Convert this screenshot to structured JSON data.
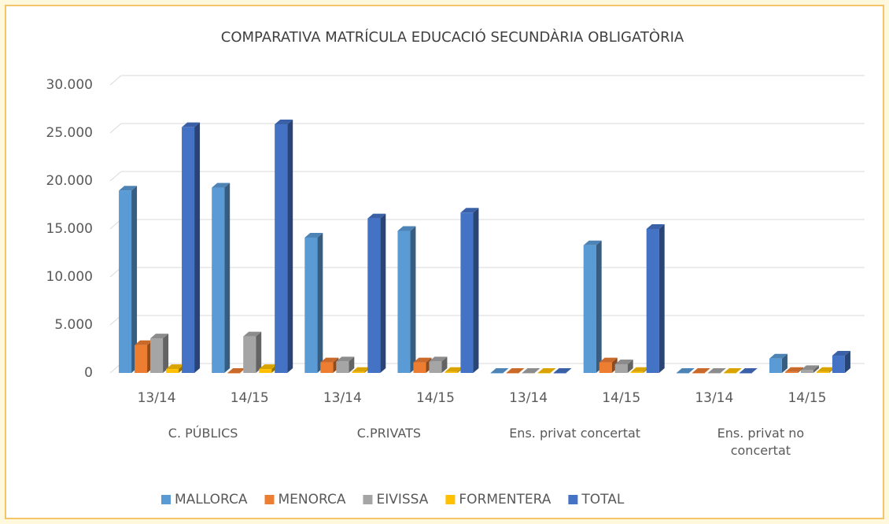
{
  "chart_data": {
    "type": "bar3d",
    "title": "COMPARATIVA MATRÍCULA EDUCACIÓ SECUNDÀRIA OBLIGATÒRIA",
    "categories": [
      "13/14",
      "14/15",
      "13/14",
      "14/15",
      "13/14",
      "14/15",
      "13/14",
      "14/15"
    ],
    "groups": [
      "C. PÚBLICS",
      "C.PRIVATS",
      "Ens. privat concertat",
      "Ens. privat no concertat"
    ],
    "series": [
      {
        "name": "MALLORCA",
        "color": "#5b9bd5",
        "values": [
          19000,
          19300,
          14100,
          14800,
          0,
          13300,
          0,
          1500
        ]
      },
      {
        "name": "MENORCA",
        "color": "#ed7d31",
        "values": [
          2900,
          0,
          1100,
          1100,
          0,
          1100,
          0,
          100
        ]
      },
      {
        "name": "EIVISSA",
        "color": "#a5a5a5",
        "values": [
          3600,
          3800,
          1200,
          1200,
          0,
          900,
          0,
          300
        ]
      },
      {
        "name": "FORMENTERA",
        "color": "#ffc000",
        "values": [
          400,
          400,
          100,
          100,
          0,
          100,
          0,
          100
        ]
      },
      {
        "name": "TOTAL",
        "color": "#4472c4",
        "values": [
          25600,
          25900,
          16100,
          16700,
          0,
          15000,
          0,
          1800
        ]
      }
    ],
    "ylim": [
      0,
      30000
    ],
    "yticks": [
      0,
      {
        "value": 5000,
        "label": "5.000"
      },
      {
        "value": 10000,
        "label": "10.000"
      },
      {
        "value": 15000,
        "label": "15.000"
      },
      {
        "value": 20000,
        "label": "20.000"
      },
      {
        "value": 25000,
        "label": "25.000"
      },
      {
        "value": 30000,
        "label": "30.000"
      }
    ],
    "grid": true,
    "legend": "bottom"
  }
}
